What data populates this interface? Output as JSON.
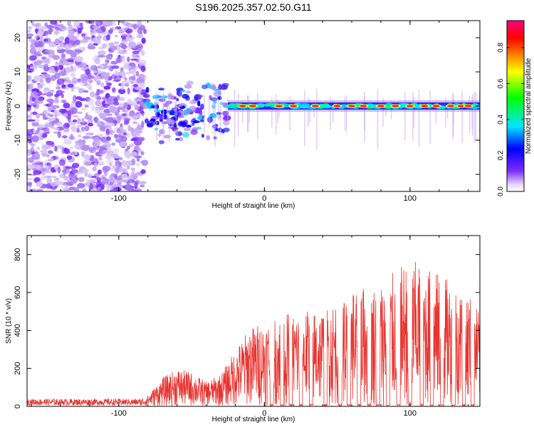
{
  "title": "S196.2025.357.02.50.G11",
  "chart_data": [
    {
      "type": "heatmap",
      "name": "spectrogram",
      "xlabel": "Height of straight line (km)",
      "ylabel": "Frequency (Hz)",
      "xlim": [
        -163,
        148
      ],
      "ylim": [
        -25,
        25
      ],
      "xticks": [
        -100,
        0,
        100
      ],
      "yticks": [
        -20,
        -10,
        0,
        10,
        20
      ],
      "noise_region_x": [
        -163,
        -82
      ],
      "noise_freq_range": [
        -25,
        25
      ],
      "transition_x": [
        -82,
        -25
      ],
      "signal_band_x": [
        -25,
        148
      ],
      "signal_center_freq": 0,
      "peak_segments_x": [
        -15,
        -8,
        10,
        20,
        35,
        50,
        60,
        68,
        80,
        90,
        100,
        110,
        118,
        128,
        135,
        140
      ],
      "colorbar": {
        "label": "Normalized spectral amplitude",
        "range": [
          0,
          0.95
        ],
        "ticks": [
          0.0,
          0.2,
          0.4,
          0.6,
          0.8
        ],
        "tick_labels": [
          "0.0",
          "0.2",
          "0.4",
          "0.6",
          "0.8"
        ],
        "colors": [
          "#ffffff",
          "#7b2cff",
          "#0000ff",
          "#00e5ff",
          "#00ff00",
          "#ffff00",
          "#ff8000",
          "#ff0000",
          "#ff0080"
        ]
      }
    },
    {
      "type": "line",
      "name": "snr",
      "xlabel": "Height of straight line (km)",
      "ylabel": "SNR (10 * v/v)",
      "xlim": [
        -163,
        148
      ],
      "ylim": [
        0,
        900
      ],
      "xticks": [
        -100,
        0,
        100
      ],
      "yticks": [
        0,
        200,
        400,
        600,
        800
      ],
      "color": "#e8332e",
      "envelope": {
        "x": [
          -163,
          -85,
          -80,
          -70,
          -60,
          -50,
          -40,
          -30,
          -20,
          -10,
          0,
          10,
          20,
          40,
          60,
          80,
          100,
          120,
          140,
          148
        ],
        "y_max": [
          40,
          40,
          60,
          150,
          200,
          180,
          130,
          170,
          300,
          420,
          450,
          480,
          500,
          520,
          620,
          650,
          780,
          700,
          600,
          500
        ]
      },
      "dip_x": [
        5,
        12,
        18,
        25,
        32,
        42,
        52,
        58,
        65,
        72,
        78,
        85,
        92,
        100,
        108,
        115,
        122,
        130,
        137,
        143
      ]
    }
  ]
}
